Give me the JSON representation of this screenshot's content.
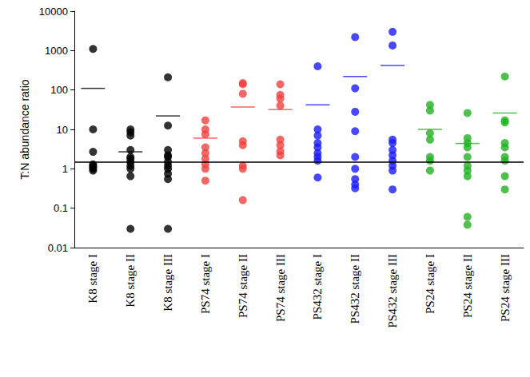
{
  "chart_data": {
    "type": "scatter",
    "y_label": "T:N abundance ratio",
    "log": "y",
    "grid": false,
    "ylim": [
      0.01,
      10000
    ],
    "yticks": [
      0.01,
      0.1,
      1,
      10,
      100,
      1000,
      10000
    ],
    "categories": [
      "K8 stage I",
      "K8 stage II",
      "K8 stage III",
      "PS74 stage I",
      "PS74 stage II",
      "PS74 stage III",
      "PS432 stage I",
      "PS432 stage II",
      "PS432 stage III",
      "PS24 stage I",
      "PS24 stage II",
      "PS24 stage III"
    ],
    "colors": [
      "#000000",
      "#000000",
      "#000000",
      "#f24040",
      "#f24040",
      "#f24040",
      "#1a1aff",
      "#1a1aff",
      "#1a1aff",
      "#22b022",
      "#22b022",
      "#22b022"
    ],
    "values": [
      [
        1100,
        10,
        2.7,
        1.3,
        1.0,
        1.1,
        0.9,
        1.2
      ],
      [
        10,
        8.5,
        7,
        3,
        2,
        1.8,
        1.5,
        1.2,
        1,
        0.65,
        0.03
      ],
      [
        210,
        12.5,
        3,
        2.2,
        2,
        1.5,
        1.2,
        1,
        0.75,
        0.55,
        0.03
      ],
      [
        17,
        10,
        7.5,
        3.5,
        2.5,
        1.8,
        1.3,
        1,
        0.5
      ],
      [
        140,
        150,
        80,
        5,
        4,
        1.2,
        1.0,
        0.16
      ],
      [
        140,
        75,
        60,
        40,
        5.5,
        4,
        2.8,
        2.2
      ],
      [
        400,
        10,
        7,
        4.5,
        3.5,
        2.5,
        2,
        1.6,
        0.6
      ],
      [
        2200,
        110,
        28,
        9,
        2,
        1,
        0.55,
        0.4,
        0.32
      ],
      [
        3000,
        1350,
        5.5,
        4.5,
        3,
        2.2,
        1.6,
        1.2,
        0.9,
        0.3
      ],
      [
        42,
        30,
        8,
        5.5,
        2,
        1.6,
        0.9
      ],
      [
        26,
        6,
        4.5,
        3.5,
        2,
        1.2,
        0.9,
        0.65,
        0.06,
        0.038
      ],
      [
        220,
        17,
        15,
        4.5,
        3.5,
        2,
        1.6,
        0.65,
        0.3
      ]
    ],
    "means": [
      110,
      2.7,
      22,
      6,
      37,
      32,
      42,
      220,
      420,
      10,
      4.4,
      26
    ],
    "reference_line": 1.5
  }
}
